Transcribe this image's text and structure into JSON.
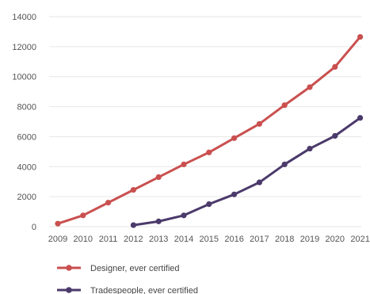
{
  "chart_data": {
    "type": "line",
    "title": "",
    "xlabel": "",
    "ylabel": "",
    "x": [
      2009,
      2010,
      2011,
      2012,
      2013,
      2014,
      2015,
      2016,
      2017,
      2018,
      2019,
      2020,
      2021
    ],
    "x_tick_labels": [
      "2009",
      "2010",
      "2011",
      "2012",
      "2013",
      "2014",
      "2015",
      "2016",
      "2017",
      "2018",
      "2019",
      "2020",
      "2021"
    ],
    "ylim": [
      0,
      14000
    ],
    "y_ticks": [
      0,
      2000,
      4000,
      6000,
      8000,
      10000,
      12000,
      14000
    ],
    "y_tick_labels": [
      "0",
      "2000",
      "4000",
      "6000",
      "8000",
      "10000",
      "12000",
      "14000"
    ],
    "grid": true,
    "legend_position": "bottom-left",
    "series": [
      {
        "name": "Designer, ever certified",
        "color": "#c9504f",
        "values": [
          200,
          750,
          1600,
          2450,
          3300,
          4150,
          4950,
          5900,
          6850,
          8100,
          9300,
          10650,
          12650
        ]
      },
      {
        "name": "Tradespeople, ever certified",
        "color": "#4b3a6b",
        "values": [
          null,
          null,
          null,
          100,
          350,
          750,
          1500,
          2150,
          2950,
          4150,
          5200,
          6050,
          7250
        ]
      }
    ]
  }
}
